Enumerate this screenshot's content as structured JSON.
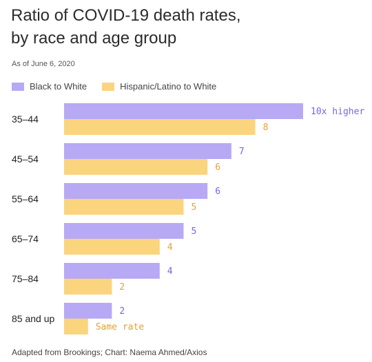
{
  "title": "Ratio of COVID-19 death rates, by race and age group",
  "subtitle": "As of June 6, 2020",
  "footer": "Adapted from Brookings; Chart: Naema Ahmed/Axios",
  "colors": {
    "black_to_white": "#b8a9f5",
    "hispanic_to_white": "#fbd47e",
    "black_label": "#7b63e6",
    "hispanic_label": "#e4a233"
  },
  "chart_data": {
    "type": "bar",
    "orientation": "horizontal",
    "categories": [
      "35–44",
      "45–54",
      "55–64",
      "65–74",
      "75–84",
      "85 and up"
    ],
    "series": [
      {
        "name": "Black to White",
        "values": [
          10,
          7,
          6,
          5,
          4,
          2
        ],
        "labels": [
          "10x higher",
          "7",
          "6",
          "5",
          "4",
          "2"
        ]
      },
      {
        "name": "Hispanic/Latino to White",
        "values": [
          8,
          6,
          5,
          4,
          2,
          1
        ],
        "labels": [
          "8",
          "6",
          "5",
          "4",
          "2",
          "Same rate"
        ]
      }
    ],
    "xlim": [
      0,
      10
    ],
    "grid": false,
    "legend": "top-left"
  }
}
